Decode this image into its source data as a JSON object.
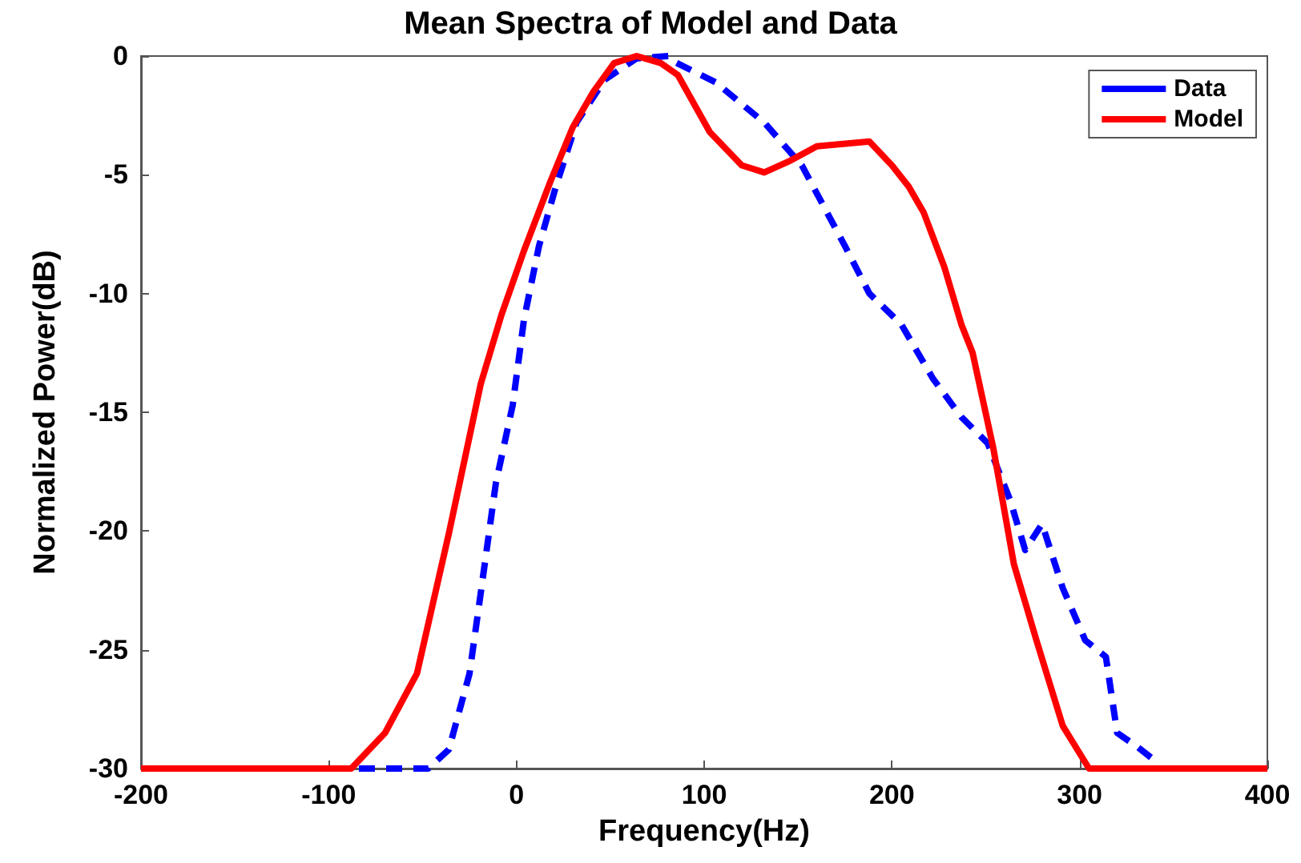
{
  "chart_data": {
    "type": "line",
    "title": "Mean Spectra of Model and Data",
    "xlabel": "Frequency(Hz)",
    "ylabel": "Normalized Power(dB)",
    "xlim": [
      -200,
      400
    ],
    "xticks": [
      -200,
      -100,
      0,
      100,
      200,
      300,
      400
    ],
    "ylim": [
      -30,
      0
    ],
    "yticks": [
      -30,
      -25,
      -20,
      -15,
      -10,
      -5,
      0
    ],
    "grid": false,
    "legend": "top right",
    "series": [
      {
        "name": "Data",
        "color": "#0000ff",
        "line_style": "dashed",
        "x": [
          -200,
          -47,
          -36,
          -25,
          -19,
          -11,
          -2,
          4,
          12,
          21,
          32,
          47,
          64,
          81,
          83,
          106,
          132,
          152,
          175,
          188,
          205,
          222,
          237,
          251,
          263,
          271,
          280,
          291,
          303,
          314,
          320,
          331,
          339
        ],
        "values": [
          -30,
          -30,
          -29.2,
          -26,
          -22.6,
          -18,
          -14.7,
          -11.1,
          -8,
          -5.5,
          -2.8,
          -1,
          -0.1,
          0,
          -0.2,
          -1.1,
          -2.8,
          -4.6,
          -8,
          -10,
          -11.3,
          -13.6,
          -15.2,
          -16.3,
          -18.7,
          -20.8,
          -19.7,
          -22.4,
          -24.6,
          -25.3,
          -28.5,
          -29.1,
          -29.6
        ]
      },
      {
        "name": "Model",
        "color": "#ff0000",
        "line_style": "solid",
        "x": [
          -200,
          -88,
          -70,
          -53,
          -36,
          -19,
          -8,
          4,
          18,
          30,
          41,
          52,
          64,
          77,
          86,
          103,
          120,
          132,
          146,
          160,
          188,
          200,
          209,
          217,
          228,
          237,
          243,
          254,
          265,
          277,
          291,
          305,
          400
        ],
        "values": [
          -30,
          -30,
          -28.5,
          -26,
          -20.1,
          -13.8,
          -10.9,
          -8.2,
          -5.3,
          -3,
          -1.5,
          -0.3,
          0,
          -0.3,
          -0.8,
          -3.2,
          -4.6,
          -4.9,
          -4.4,
          -3.8,
          -3.6,
          -4.6,
          -5.5,
          -6.6,
          -8.9,
          -11.3,
          -12.5,
          -16.5,
          -21.4,
          -24.6,
          -28.2,
          -30,
          -30
        ]
      }
    ]
  }
}
